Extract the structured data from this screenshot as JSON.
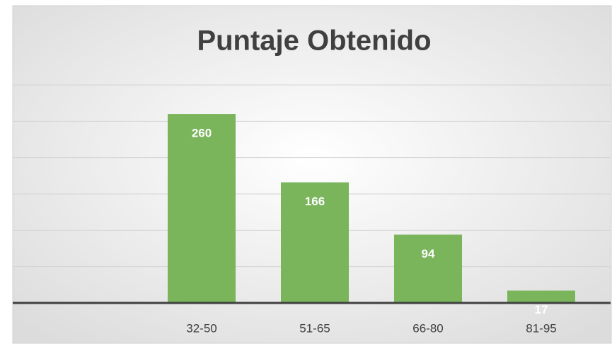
{
  "chart_data": {
    "type": "bar",
    "title": "Puntaje Obtenido",
    "categories": [
      null,
      "32-50",
      "51-65",
      "66-80",
      "81-95"
    ],
    "values": [
      null,
      260,
      166,
      94,
      17
    ],
    "color": "#7ab55c",
    "ylim": [
      0,
      300
    ],
    "yticks": [
      0,
      50,
      100,
      150,
      200,
      250,
      300
    ],
    "grid": true
  }
}
